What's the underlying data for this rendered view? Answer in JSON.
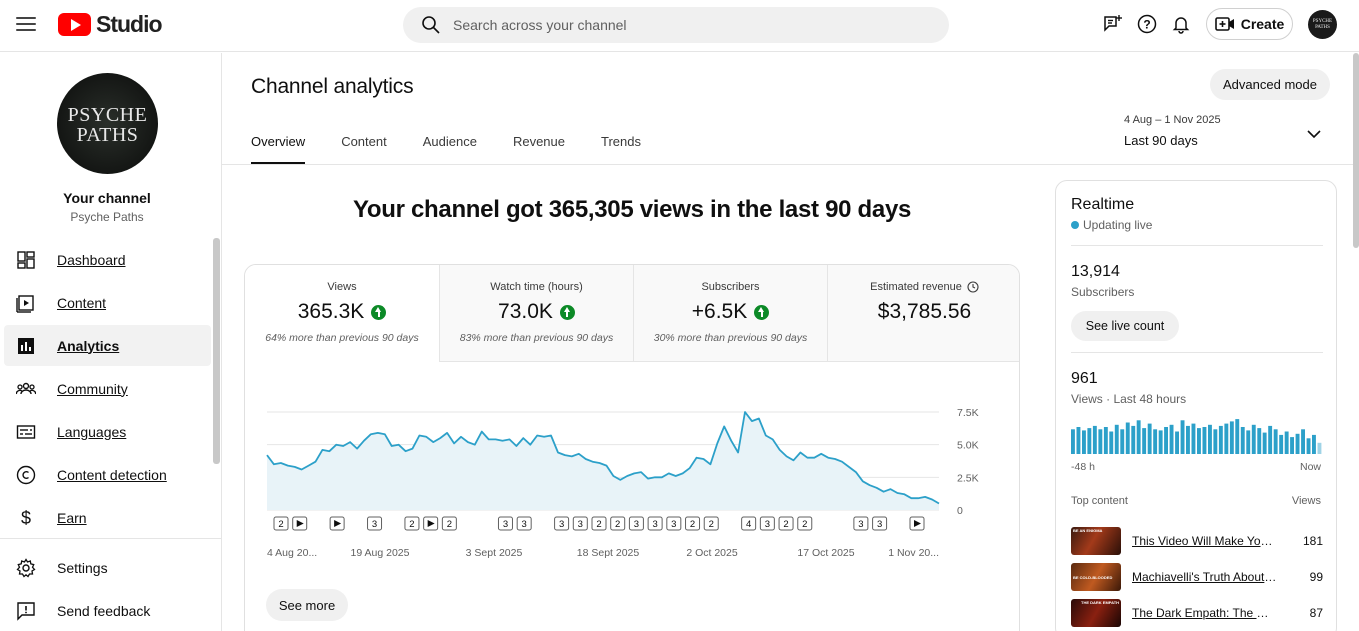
{
  "header": {
    "logo_text": "Studio",
    "search_placeholder": "Search across your channel",
    "create_label": "Create",
    "avatar_text": "PSYCHE PATHS"
  },
  "sidebar": {
    "channel_avatar_line1": "PSYCHE",
    "channel_avatar_line2": "PATHS",
    "channel_title": "Your channel",
    "channel_name": "Psyche Paths",
    "items": [
      {
        "label": "Dashboard",
        "icon": "dashboard-icon"
      },
      {
        "label": "Content",
        "icon": "content-icon"
      },
      {
        "label": "Analytics",
        "icon": "analytics-icon"
      },
      {
        "label": "Community",
        "icon": "community-icon"
      },
      {
        "label": "Languages",
        "icon": "languages-icon"
      },
      {
        "label": "Content detection",
        "icon": "copyright-icon"
      },
      {
        "label": "Earn",
        "icon": "dollar-icon"
      },
      {
        "label": "Settings",
        "icon": "gear-icon"
      },
      {
        "label": "Send feedback",
        "icon": "feedback-icon"
      }
    ]
  },
  "main": {
    "title": "Channel analytics",
    "advanced_mode": "Advanced mode",
    "tabs": [
      "Overview",
      "Content",
      "Audience",
      "Revenue",
      "Trends"
    ],
    "date_range": "4 Aug – 1 Nov 2025",
    "date_label": "Last 90 days",
    "headline": "Your channel got 365,305 views in the last 90 days",
    "metrics": [
      {
        "label": "Views",
        "value": "365.3K",
        "note": "64% more than previous 90 days",
        "trend": "up"
      },
      {
        "label": "Watch time (hours)",
        "value": "73.0K",
        "note": "83% more than previous 90 days",
        "trend": "up"
      },
      {
        "label": "Subscribers",
        "value": "+6.5K",
        "note": "30% more than previous 90 days",
        "trend": "up"
      },
      {
        "label": "Estimated revenue",
        "value": "$3,785.56",
        "note": "",
        "trend": "none"
      }
    ],
    "see_more": "See more"
  },
  "chart_data": {
    "type": "area",
    "y_ticks": [
      "0",
      "2.5K",
      "5.0K",
      "7.5K"
    ],
    "ylim": [
      0,
      7500
    ],
    "x_tick_labels": [
      "4 Aug 20...",
      "19 Aug 2025",
      "3 Sept 2025",
      "18 Sept 2025",
      "2 Oct 2025",
      "17 Oct 2025",
      "1 Nov 20..."
    ],
    "values": [
      4200,
      3500,
      3600,
      3400,
      3300,
      3100,
      3400,
      3700,
      4600,
      4500,
      5000,
      4900,
      5200,
      4700,
      5300,
      5800,
      5900,
      5800,
      4900,
      5000,
      4500,
      4700,
      5700,
      5600,
      5200,
      5500,
      5900,
      5100,
      5600,
      5200,
      5000,
      6000,
      5400,
      5400,
      5300,
      5400,
      4900,
      5500,
      5000,
      5700,
      5600,
      5700,
      4400,
      4200,
      4100,
      4300,
      3900,
      3700,
      3600,
      3400,
      2600,
      2300,
      2600,
      2800,
      2900,
      2400,
      2500,
      2500,
      2800,
      2600,
      2800,
      3200,
      4000,
      3900,
      3500,
      5100,
      6400,
      5300,
      4400,
      7500,
      6800,
      7000,
      5700,
      5400,
      4600,
      4100,
      3800,
      4400,
      4000,
      4000,
      4300,
      4000,
      3900,
      3700,
      3300,
      2900,
      2200,
      1900,
      1700,
      1400,
      1600,
      1300,
      1200,
      900,
      900,
      1000,
      800,
      500
    ],
    "markers": [
      "2",
      "play",
      "",
      "play",
      "",
      "3",
      "",
      "2",
      "play",
      "2",
      "",
      "",
      "3",
      "3",
      "",
      "3",
      "3",
      "2",
      "2",
      "3",
      "3",
      "3",
      "2",
      "2",
      "",
      "4",
      "3",
      "2",
      "2",
      "",
      "",
      "3",
      "3",
      "",
      "play"
    ]
  },
  "realtime": {
    "title": "Realtime",
    "status": "Updating live",
    "subscribers": "13,914",
    "subscribers_label": "Subscribers",
    "live_count_btn": "See live count",
    "views": "961",
    "views_label": "Views · Last 48 hours",
    "bars": [
      22,
      24,
      21,
      23,
      25,
      22,
      24,
      20,
      26,
      22,
      28,
      25,
      30,
      23,
      27,
      22,
      21,
      24,
      26,
      20,
      30,
      25,
      27,
      23,
      24,
      26,
      22,
      25,
      27,
      29,
      31,
      24,
      21,
      26,
      23,
      19,
      25,
      22,
      17,
      20,
      15,
      18,
      22,
      14,
      17,
      10
    ],
    "axis_left": "-48 h",
    "axis_right": "Now",
    "top_content_label": "Top content",
    "views_col_label": "Views",
    "top_content": [
      {
        "title": "This Video Will Make You ...",
        "views": "181",
        "thumb_text": "BE AN ENIGMA"
      },
      {
        "title": "Machiavelli's Truth About Po...",
        "views": "99",
        "thumb_text": "BE COLD-BLOODED"
      },
      {
        "title": "The Dark Empath: The Most ...",
        "views": "87",
        "thumb_text": "THE DARK EMPATH"
      }
    ]
  }
}
